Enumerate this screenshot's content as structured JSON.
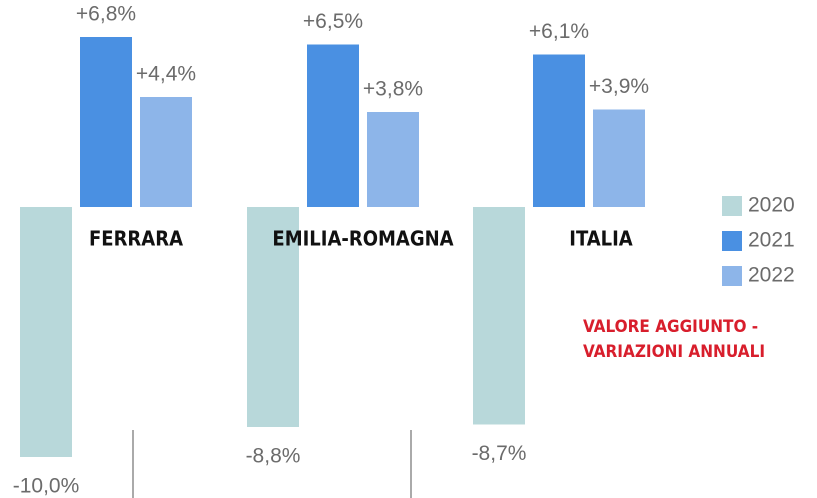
{
  "chart_data": {
    "type": "bar",
    "categories": [
      "FERRARA",
      "EMILIA-ROMAGNA",
      "ITALIA"
    ],
    "series": [
      {
        "name": "2020",
        "color": "#b8d8da",
        "values": [
          -10.0,
          -8.8,
          -8.7
        ],
        "value_labels": [
          "-10,0%",
          "-8,8%",
          "-8,7%"
        ]
      },
      {
        "name": "2021",
        "color": "#4a90e2",
        "values": [
          6.8,
          6.5,
          6.1
        ],
        "value_labels": [
          "+6,8%",
          "+6,5%",
          "+6,1%"
        ]
      },
      {
        "name": "2022",
        "color": "#8db5e9",
        "values": [
          4.4,
          3.8,
          3.9
        ],
        "value_labels": [
          "+4,4%",
          "+3,8%",
          "+3,9%"
        ]
      }
    ],
    "ylim": [
      -11,
      8
    ],
    "legend": "right",
    "annotations": [
      "VALORE AGGIUNTO -",
      "VARIAZIONI ANNUALI"
    ]
  }
}
